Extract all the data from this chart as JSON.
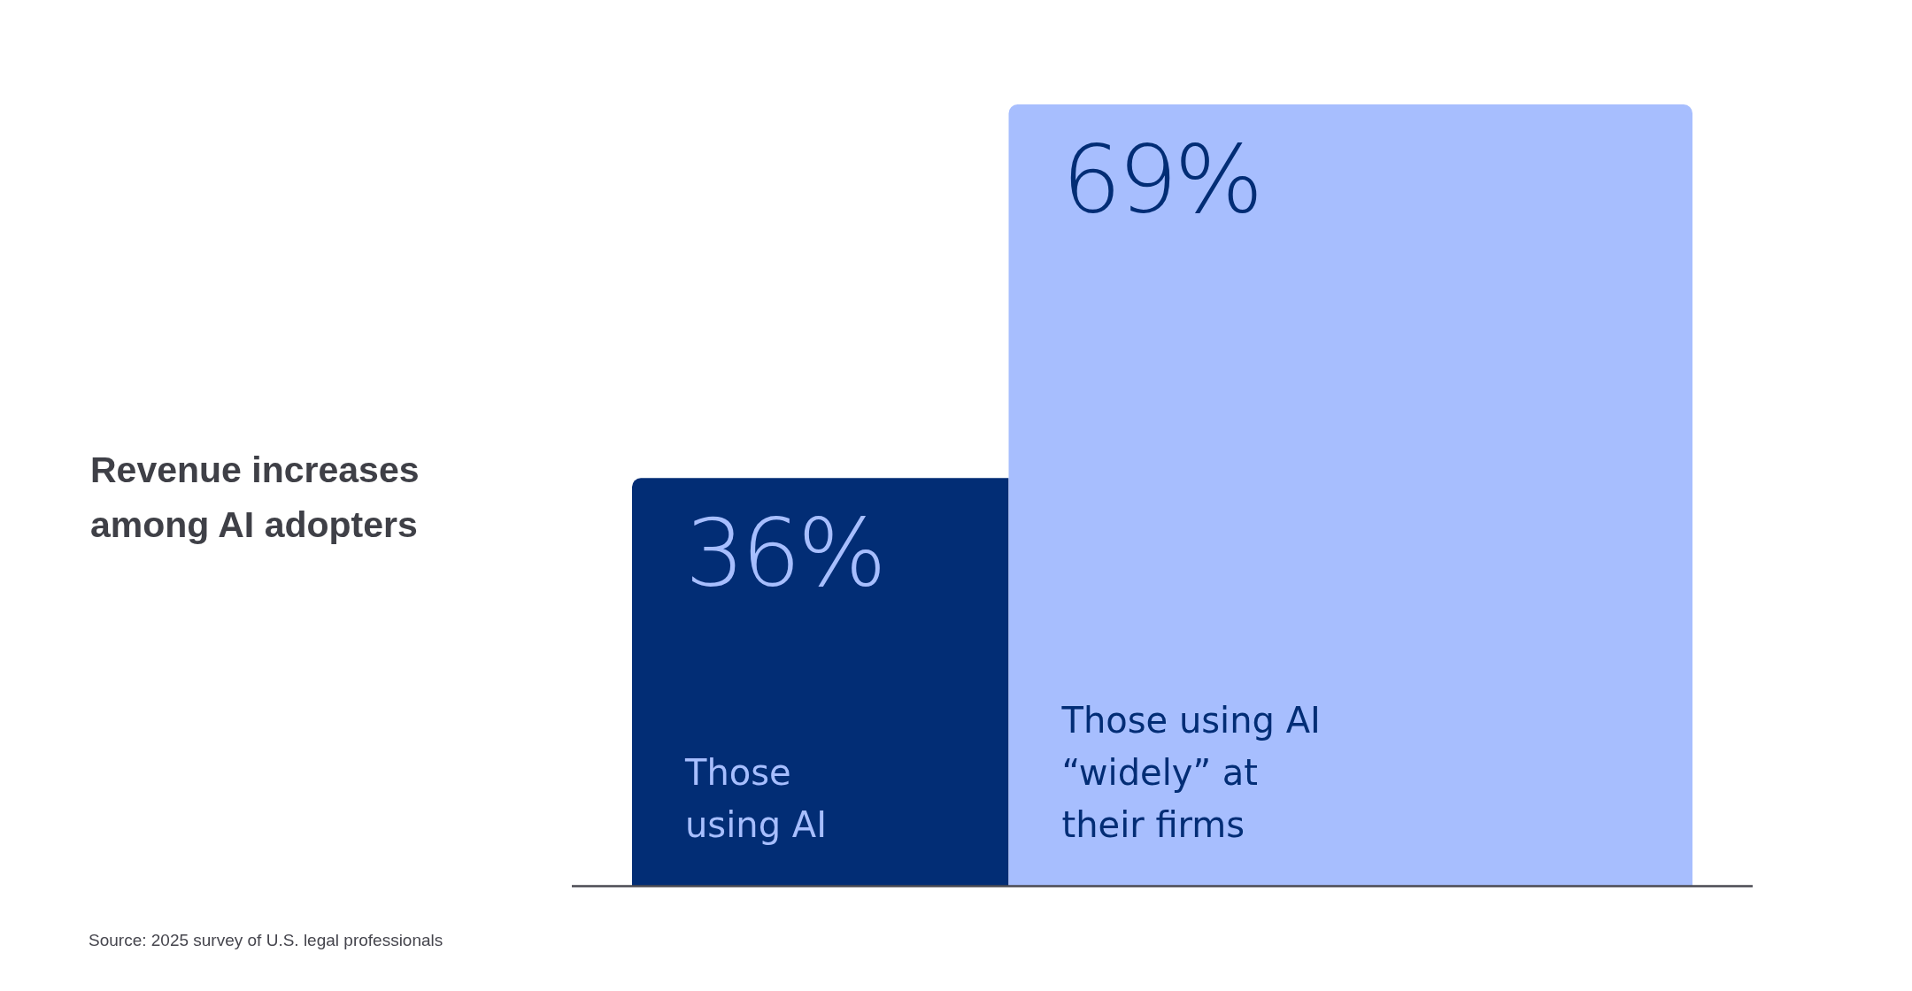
{
  "chart_data": {
    "type": "bar",
    "title": "Revenue increases among AI adopters",
    "categories": [
      "Those using AI",
      "Those using AI “widely” at their firms"
    ],
    "values": [
      36,
      69
    ],
    "colors": [
      "#022d75",
      "#a7befe"
    ],
    "value_labels": [
      "36%",
      "69%"
    ],
    "annotations": [
      "Source: 2025 survey of U.S. legal professionals"
    ]
  }
}
